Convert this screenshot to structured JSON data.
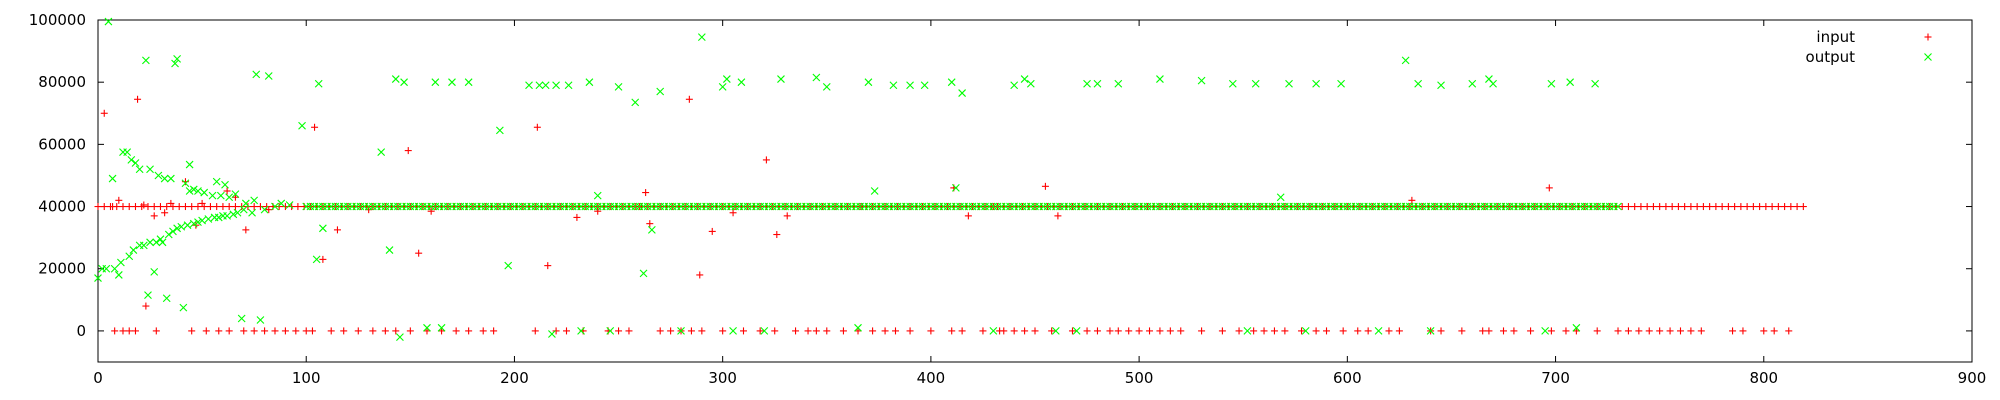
{
  "chart_data": {
    "type": "scatter",
    "title": "",
    "xlabel": "",
    "ylabel": "",
    "xlim": [
      0,
      900
    ],
    "ylim": [
      -10000,
      100000
    ],
    "x_ticks": [
      "0",
      "100",
      "200",
      "300",
      "400",
      "500",
      "600",
      "700",
      "800",
      "900"
    ],
    "y_ticks": [
      "0",
      "20000",
      "40000",
      "60000",
      "80000",
      "100000"
    ],
    "grid": false,
    "legend_position": "top-right",
    "series": [
      {
        "name": "input",
        "marker": "plus",
        "color": "#ff0000",
        "baseline": {
          "x_from": 0,
          "x_to": 820,
          "x_step": 3,
          "y": 40000
        },
        "points": [
          [
            3,
            70000
          ],
          [
            7,
            40000
          ],
          [
            8,
            0
          ],
          [
            10,
            42000
          ],
          [
            12,
            0
          ],
          [
            15,
            0
          ],
          [
            18,
            0
          ],
          [
            19,
            74500
          ],
          [
            22,
            40500
          ],
          [
            23,
            8000
          ],
          [
            27,
            37000
          ],
          [
            28,
            0
          ],
          [
            32,
            38000
          ],
          [
            35,
            41000
          ],
          [
            42,
            48000
          ],
          [
            45,
            0
          ],
          [
            47,
            34000
          ],
          [
            50,
            41000
          ],
          [
            52,
            0
          ],
          [
            58,
            0
          ],
          [
            62,
            45000
          ],
          [
            63,
            0
          ],
          [
            66,
            43000
          ],
          [
            70,
            0
          ],
          [
            71,
            32500
          ],
          [
            75,
            0
          ],
          [
            80,
            0
          ],
          [
            82,
            39000
          ],
          [
            85,
            0
          ],
          [
            90,
            0
          ],
          [
            95,
            0
          ],
          [
            100,
            0
          ],
          [
            103,
            0
          ],
          [
            104,
            65500
          ],
          [
            108,
            23000
          ],
          [
            112,
            0
          ],
          [
            115,
            32500
          ],
          [
            118,
            0
          ],
          [
            125,
            0
          ],
          [
            130,
            39000
          ],
          [
            132,
            0
          ],
          [
            138,
            0
          ],
          [
            143,
            0
          ],
          [
            149,
            58000
          ],
          [
            150,
            0
          ],
          [
            154,
            25000
          ],
          [
            158,
            0
          ],
          [
            160,
            38500
          ],
          [
            165,
            0
          ],
          [
            172,
            0
          ],
          [
            178,
            0
          ],
          [
            185,
            0
          ],
          [
            190,
            0
          ],
          [
            195,
            40000
          ],
          [
            210,
            0
          ],
          [
            211,
            65500
          ],
          [
            216,
            21000
          ],
          [
            220,
            0
          ],
          [
            225,
            0
          ],
          [
            230,
            36500
          ],
          [
            233,
            0
          ],
          [
            240,
            38500
          ],
          [
            245,
            0
          ],
          [
            250,
            0
          ],
          [
            255,
            0
          ],
          [
            260,
            40000
          ],
          [
            263,
            44500
          ],
          [
            265,
            34500
          ],
          [
            270,
            0
          ],
          [
            275,
            0
          ],
          [
            280,
            0
          ],
          [
            284,
            74500
          ],
          [
            285,
            0
          ],
          [
            289,
            18000
          ],
          [
            290,
            0
          ],
          [
            295,
            32000
          ],
          [
            300,
            0
          ],
          [
            305,
            38000
          ],
          [
            310,
            0
          ],
          [
            318,
            0
          ],
          [
            321,
            55000
          ],
          [
            325,
            0
          ],
          [
            326,
            31000
          ],
          [
            331,
            37000
          ],
          [
            335,
            0
          ],
          [
            341,
            0
          ],
          [
            345,
            0
          ],
          [
            350,
            0
          ],
          [
            358,
            0
          ],
          [
            365,
            0
          ],
          [
            367,
            40000
          ],
          [
            372,
            0
          ],
          [
            378,
            0
          ],
          [
            383,
            0
          ],
          [
            390,
            0
          ],
          [
            400,
            0
          ],
          [
            410,
            0
          ],
          [
            411,
            46000
          ],
          [
            415,
            0
          ],
          [
            418,
            37000
          ],
          [
            425,
            0
          ],
          [
            430,
            40000
          ],
          [
            433,
            0
          ],
          [
            435,
            0
          ],
          [
            440,
            0
          ],
          [
            445,
            0
          ],
          [
            450,
            0
          ],
          [
            455,
            46500
          ],
          [
            458,
            0
          ],
          [
            461,
            37000
          ],
          [
            468,
            0
          ],
          [
            475,
            0
          ],
          [
            480,
            0
          ],
          [
            486,
            0
          ],
          [
            490,
            0
          ],
          [
            495,
            0
          ],
          [
            500,
            0
          ],
          [
            505,
            0
          ],
          [
            510,
            0
          ],
          [
            515,
            0
          ],
          [
            520,
            0
          ],
          [
            530,
            0
          ],
          [
            540,
            0
          ],
          [
            548,
            0
          ],
          [
            555,
            0
          ],
          [
            560,
            0
          ],
          [
            565,
            0
          ],
          [
            570,
            0
          ],
          [
            578,
            0
          ],
          [
            585,
            0
          ],
          [
            590,
            0
          ],
          [
            598,
            0
          ],
          [
            605,
            0
          ],
          [
            610,
            0
          ],
          [
            620,
            0
          ],
          [
            625,
            0
          ],
          [
            631,
            42000
          ],
          [
            640,
            0
          ],
          [
            645,
            0
          ],
          [
            655,
            0
          ],
          [
            665,
            0
          ],
          [
            668,
            0
          ],
          [
            675,
            0
          ],
          [
            680,
            0
          ],
          [
            688,
            0
          ],
          [
            697,
            46000
          ],
          [
            698,
            0
          ],
          [
            705,
            0
          ],
          [
            710,
            0
          ],
          [
            720,
            0
          ],
          [
            730,
            0
          ],
          [
            735,
            0
          ],
          [
            740,
            0
          ],
          [
            745,
            0
          ],
          [
            750,
            0
          ],
          [
            755,
            0
          ],
          [
            760,
            0
          ],
          [
            765,
            0
          ],
          [
            770,
            0
          ],
          [
            785,
            0
          ],
          [
            790,
            0
          ],
          [
            800,
            0
          ],
          [
            805,
            0
          ],
          [
            812,
            0
          ]
        ]
      },
      {
        "name": "output",
        "marker": "cross",
        "color": "#00ff00",
        "baseline": {
          "x_from": 100,
          "x_to": 730,
          "x_step": 2,
          "y": 40000
        },
        "points": [
          [
            0,
            17000
          ],
          [
            2,
            20000
          ],
          [
            4,
            20000
          ],
          [
            5,
            99500
          ],
          [
            7,
            49000
          ],
          [
            8,
            20000
          ],
          [
            10,
            18000
          ],
          [
            11,
            22000
          ],
          [
            12,
            57500
          ],
          [
            14,
            57500
          ],
          [
            15,
            24000
          ],
          [
            16,
            55000
          ],
          [
            17,
            26000
          ],
          [
            18,
            54000
          ],
          [
            20,
            52000
          ],
          [
            20,
            27500
          ],
          [
            22,
            27500
          ],
          [
            23,
            87000
          ],
          [
            24,
            11500
          ],
          [
            25,
            52000
          ],
          [
            25,
            28500
          ],
          [
            27,
            19000
          ],
          [
            28,
            28500
          ],
          [
            29,
            50000
          ],
          [
            30,
            29500
          ],
          [
            31,
            28500
          ],
          [
            32,
            49000
          ],
          [
            33,
            10500
          ],
          [
            34,
            31000
          ],
          [
            35,
            49000
          ],
          [
            36,
            32000
          ],
          [
            37,
            86000
          ],
          [
            38,
            33000
          ],
          [
            38,
            87500
          ],
          [
            40,
            33500
          ],
          [
            41,
            7500
          ],
          [
            42,
            47500
          ],
          [
            43,
            34000
          ],
          [
            44,
            45000
          ],
          [
            44,
            53500
          ],
          [
            46,
            34500
          ],
          [
            46,
            45500
          ],
          [
            48,
            35000
          ],
          [
            48,
            45000
          ],
          [
            50,
            35500
          ],
          [
            51,
            44500
          ],
          [
            53,
            36000
          ],
          [
            55,
            43500
          ],
          [
            56,
            36500
          ],
          [
            57,
            48000
          ],
          [
            58,
            36500
          ],
          [
            59,
            43500
          ],
          [
            60,
            37000
          ],
          [
            61,
            47000
          ],
          [
            62,
            37000
          ],
          [
            63,
            43000
          ],
          [
            65,
            37500
          ],
          [
            66,
            44000
          ],
          [
            67,
            38000
          ],
          [
            69,
            4000
          ],
          [
            70,
            39000
          ],
          [
            71,
            41000
          ],
          [
            74,
            38000
          ],
          [
            75,
            42000
          ],
          [
            76,
            82500
          ],
          [
            78,
            3500
          ],
          [
            80,
            39000
          ],
          [
            82,
            82000
          ],
          [
            85,
            40000
          ],
          [
            88,
            41000
          ],
          [
            92,
            40500
          ],
          [
            98,
            66000
          ],
          [
            105,
            23000
          ],
          [
            106,
            79500
          ],
          [
            108,
            33000
          ],
          [
            136,
            57500
          ],
          [
            140,
            26000
          ],
          [
            143,
            81000
          ],
          [
            145,
            -2000
          ],
          [
            147,
            80000
          ],
          [
            158,
            1000
          ],
          [
            162,
            80000
          ],
          [
            165,
            1000
          ],
          [
            170,
            80000
          ],
          [
            178,
            80000
          ],
          [
            193,
            64500
          ],
          [
            197,
            21000
          ],
          [
            207,
            79000
          ],
          [
            212,
            79000
          ],
          [
            215,
            79000
          ],
          [
            218,
            -1000
          ],
          [
            220,
            79000
          ],
          [
            226,
            79000
          ],
          [
            232,
            0
          ],
          [
            236,
            80000
          ],
          [
            240,
            43500
          ],
          [
            246,
            0
          ],
          [
            250,
            78500
          ],
          [
            258,
            73500
          ],
          [
            262,
            18500
          ],
          [
            266,
            32500
          ],
          [
            270,
            77000
          ],
          [
            280,
            0
          ],
          [
            290,
            94500
          ],
          [
            300,
            78500
          ],
          [
            302,
            81000
          ],
          [
            305,
            0
          ],
          [
            309,
            80000
          ],
          [
            320,
            0
          ],
          [
            328,
            81000
          ],
          [
            345,
            81500
          ],
          [
            350,
            78500
          ],
          [
            365,
            1000
          ],
          [
            370,
            80000
          ],
          [
            373,
            45000
          ],
          [
            382,
            79000
          ],
          [
            390,
            79000
          ],
          [
            397,
            79000
          ],
          [
            410,
            80000
          ],
          [
            412,
            46000
          ],
          [
            415,
            76500
          ],
          [
            430,
            0
          ],
          [
            440,
            79000
          ],
          [
            445,
            81000
          ],
          [
            448,
            79500
          ],
          [
            460,
            0
          ],
          [
            470,
            0
          ],
          [
            475,
            79500
          ],
          [
            480,
            79500
          ],
          [
            490,
            79500
          ],
          [
            510,
            81000
          ],
          [
            530,
            80500
          ],
          [
            545,
            79500
          ],
          [
            552,
            0
          ],
          [
            556,
            79500
          ],
          [
            568,
            43000
          ],
          [
            572,
            79500
          ],
          [
            580,
            0
          ],
          [
            585,
            79500
          ],
          [
            597,
            79500
          ],
          [
            615,
            0
          ],
          [
            628,
            87000
          ],
          [
            634,
            79500
          ],
          [
            640,
            0
          ],
          [
            645,
            79000
          ],
          [
            660,
            79500
          ],
          [
            668,
            81000
          ],
          [
            670,
            79500
          ],
          [
            695,
            0
          ],
          [
            698,
            79500
          ],
          [
            707,
            80000
          ],
          [
            710,
            1000
          ],
          [
            719,
            79500
          ]
        ]
      }
    ]
  }
}
